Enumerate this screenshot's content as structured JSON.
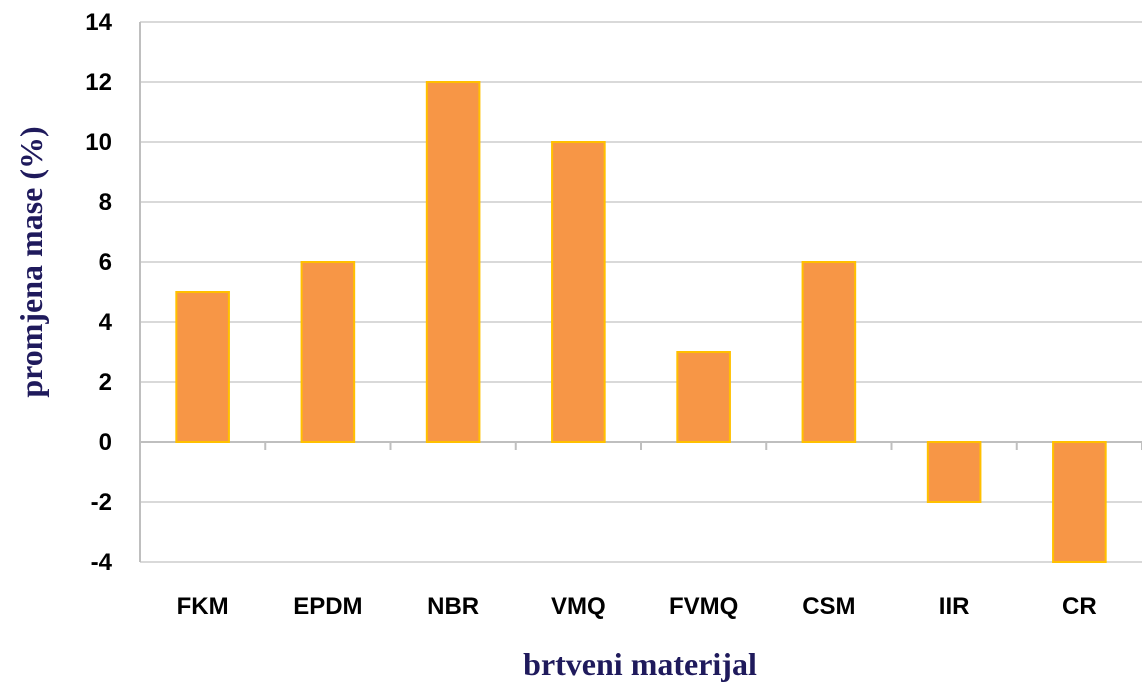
{
  "chart_data": {
    "type": "bar",
    "categories": [
      "FKM",
      "EPDM",
      "NBR",
      "VMQ",
      "FVMQ",
      "CSM",
      "IIR",
      "CR"
    ],
    "values": [
      5,
      6,
      12,
      10,
      3,
      6,
      -2,
      -4
    ],
    "xlabel": "brtveni materijal",
    "ylabel": "promjena mase  (%)",
    "ylim": [
      -4,
      14
    ],
    "yticks": [
      -4,
      -2,
      0,
      2,
      4,
      6,
      8,
      10,
      12,
      14
    ],
    "grid": true,
    "bar_color": "#f79646",
    "bar_edge_color": "#ffc000",
    "title_color": "#1f1a5c",
    "legend": "none"
  }
}
